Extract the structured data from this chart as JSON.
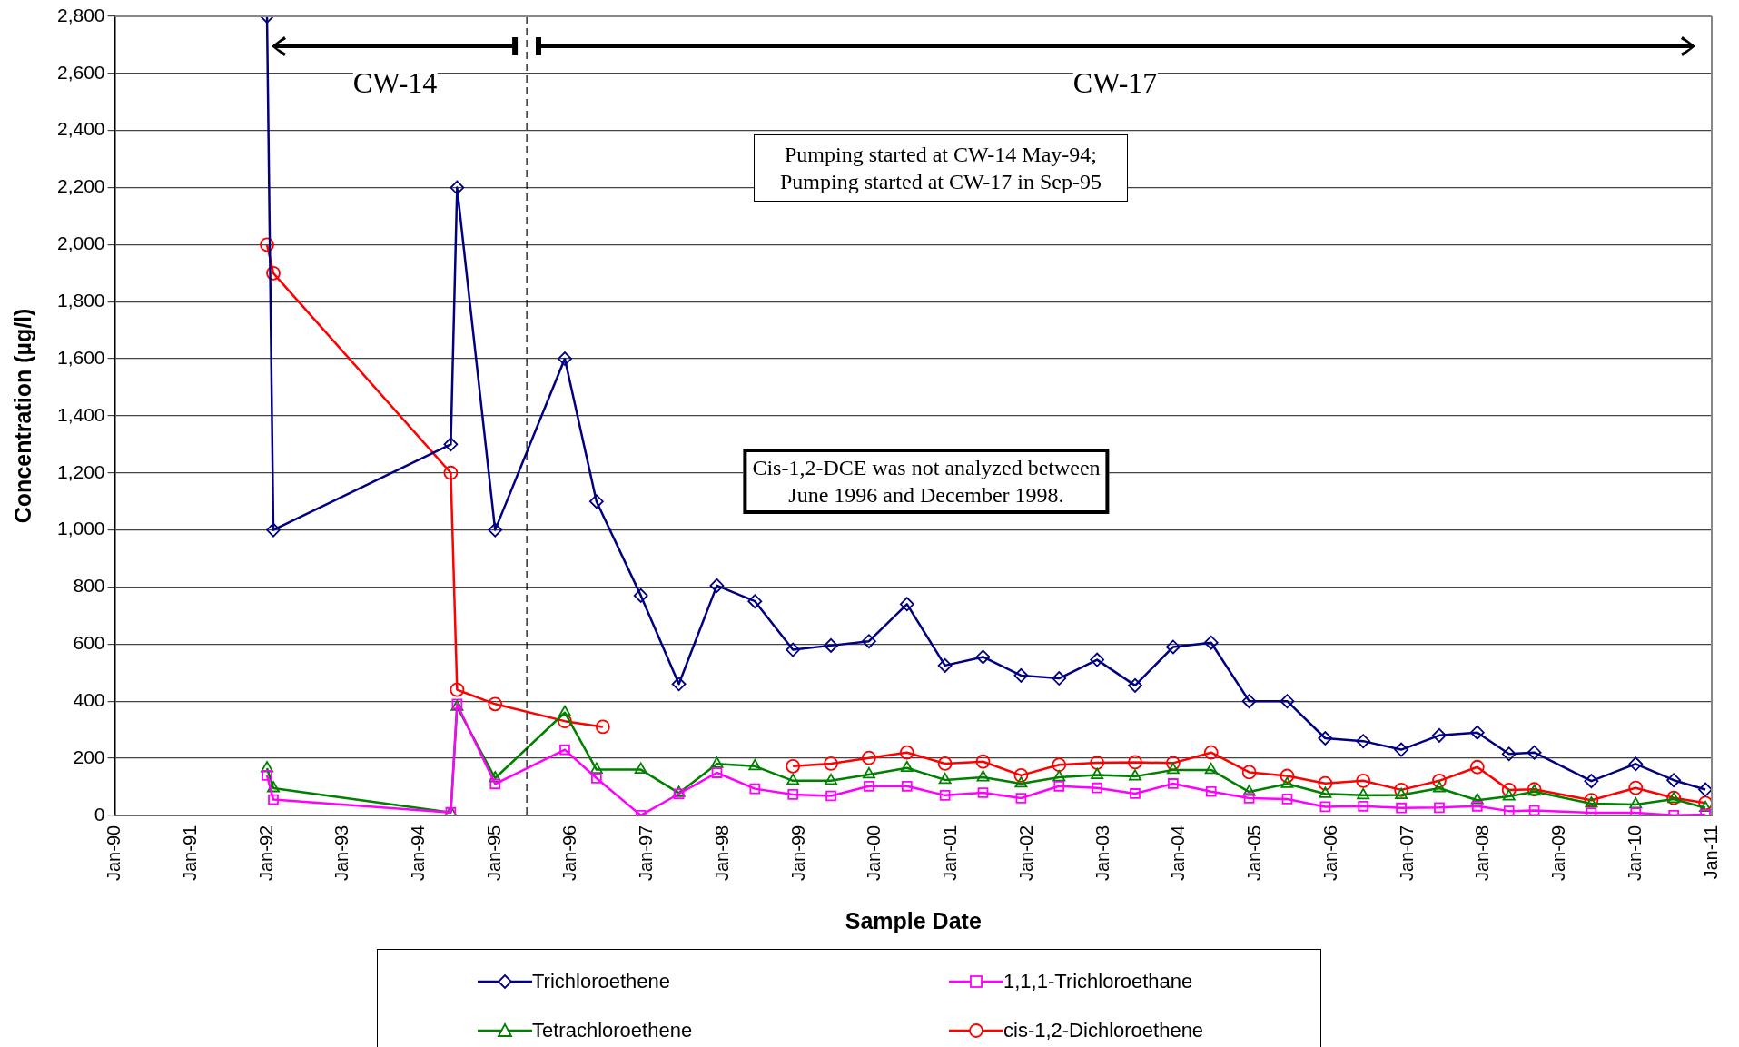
{
  "chart_data": {
    "type": "line",
    "xlabel": "Sample Date",
    "ylabel": "Concentration (µg/l)",
    "xlim": [
      "1990-01",
      "2011-01"
    ],
    "xticks": [
      {
        "value": "1990-01",
        "label": "Jan-90"
      },
      {
        "value": "1991-01",
        "label": "Jan-91"
      },
      {
        "value": "1992-01",
        "label": "Jan-92"
      },
      {
        "value": "1993-01",
        "label": "Jan-93"
      },
      {
        "value": "1994-01",
        "label": "Jan-94"
      },
      {
        "value": "1995-01",
        "label": "Jan-95"
      },
      {
        "value": "1996-01",
        "label": "Jan-96"
      },
      {
        "value": "1997-01",
        "label": "Jan-97"
      },
      {
        "value": "1998-01",
        "label": "Jan-98"
      },
      {
        "value": "1999-01",
        "label": "Jan-99"
      },
      {
        "value": "2000-01",
        "label": "Jan-00"
      },
      {
        "value": "2001-01",
        "label": "Jan-01"
      },
      {
        "value": "2002-01",
        "label": "Jan-02"
      },
      {
        "value": "2003-01",
        "label": "Jan-03"
      },
      {
        "value": "2004-01",
        "label": "Jan-04"
      },
      {
        "value": "2005-01",
        "label": "Jan-05"
      },
      {
        "value": "2006-01",
        "label": "Jan-06"
      },
      {
        "value": "2007-01",
        "label": "Jan-07"
      },
      {
        "value": "2008-01",
        "label": "Jan-08"
      },
      {
        "value": "2009-01",
        "label": "Jan-09"
      },
      {
        "value": "2010-01",
        "label": "Jan-10"
      },
      {
        "value": "2011-01",
        "label": "Jan-11"
      }
    ],
    "ylim": [
      0,
      2800
    ],
    "yticks": [
      0,
      200,
      400,
      600,
      800,
      {
        "value": 1000,
        "label": "1,000"
      },
      {
        "value": 1200,
        "label": "1,200"
      },
      {
        "value": 1400,
        "label": "1,400"
      },
      {
        "value": 1600,
        "label": "1,600"
      },
      {
        "value": 1800,
        "label": "1,800"
      },
      {
        "value": 2000,
        "label": "2,000"
      },
      {
        "value": 2200,
        "label": "2,200"
      },
      {
        "value": 2400,
        "label": "2,400"
      },
      {
        "value": 2600,
        "label": "2,600"
      },
      {
        "value": 2800,
        "label": "2,800"
      }
    ],
    "grid": "y",
    "legend": "bottom",
    "line_style": "solid",
    "series": [
      {
        "name": "Trichloroethene",
        "color": "#000080",
        "marker": "diamond",
        "x": [
          "1992-01",
          "1992-02",
          "1994-06",
          "1994-07",
          "1995-01",
          "1995-12",
          "1996-05",
          "1996-12",
          "1997-06",
          "1997-12",
          "1998-06",
          "1998-12",
          "1999-06",
          "1999-12",
          "2000-06",
          "2000-12",
          "2001-06",
          "2001-12",
          "2002-06",
          "2002-12",
          "2003-06",
          "2003-12",
          "2004-06",
          "2004-12",
          "2005-06",
          "2005-12",
          "2006-06",
          "2006-12",
          "2007-06",
          "2007-12",
          "2008-05",
          "2008-09",
          "2009-06",
          "2010-01",
          "2010-07",
          "2010-12"
        ],
        "values": [
          2800,
          1000,
          1300,
          2200,
          1000,
          1600,
          1100,
          770,
          460,
          805,
          750,
          580,
          595,
          610,
          740,
          525,
          555,
          490,
          480,
          545,
          455,
          590,
          605,
          400,
          400,
          270,
          260,
          230,
          280,
          290,
          215,
          220,
          120,
          180,
          123,
          90
        ]
      },
      {
        "name": "1,1,1-Trichloroethane",
        "color": "#ff00ff",
        "marker": "square",
        "x": [
          "1992-01",
          "1992-02",
          "1994-06",
          "1994-07",
          "1995-01",
          "1995-12",
          "1996-05",
          "1996-12",
          "1997-06",
          "1997-12",
          "1998-06",
          "1998-12",
          "1999-06",
          "1999-12",
          "2000-06",
          "2000-12",
          "2001-06",
          "2001-12",
          "2002-06",
          "2002-12",
          "2003-06",
          "2003-12",
          "2004-06",
          "2004-12",
          "2005-06",
          "2005-12",
          "2006-06",
          "2006-12",
          "2007-06",
          "2007-12",
          "2008-05",
          "2008-09",
          "2009-06",
          "2010-01",
          "2010-07",
          "2010-12"
        ],
        "values": [
          140,
          55,
          10,
          390,
          110,
          230,
          130,
          0,
          75,
          149,
          93,
          73,
          68,
          102,
          102,
          70,
          79,
          60,
          102,
          96,
          76,
          111,
          83,
          60,
          57,
          30,
          32,
          26,
          27,
          32,
          15,
          17,
          9,
          9,
          0,
          3
        ]
      },
      {
        "name": "Tetrachloroethene",
        "color": "#008000",
        "marker": "triangle",
        "x": [
          "1992-01",
          "1992-02",
          "1994-06",
          "1994-07",
          "1995-01",
          "1995-12",
          "1996-05",
          "1996-12",
          "1997-06",
          "1997-12",
          "1998-06",
          "1998-12",
          "1999-06",
          "1999-12",
          "2000-06",
          "2000-12",
          "2001-06",
          "2001-12",
          "2002-06",
          "2002-12",
          "2003-06",
          "2003-12",
          "2004-06",
          "2004-12",
          "2005-06",
          "2005-12",
          "2006-06",
          "2006-12",
          "2007-06",
          "2007-12",
          "2008-05",
          "2008-09",
          "2009-06",
          "2010-01",
          "2010-07",
          "2010-12"
        ],
        "values": [
          165,
          95,
          10,
          380,
          130,
          360,
          160,
          160,
          78,
          180,
          172,
          121,
          121,
          143,
          166,
          124,
          133,
          111,
          133,
          141,
          136,
          159,
          159,
          82,
          110,
          75,
          70,
          71,
          95,
          53,
          66,
          83,
          41,
          38,
          57,
          26
        ]
      },
      {
        "name": "cis-1,2-Dichloroethene",
        "color": "#ff0000",
        "marker": "circle",
        "x": [
          "1992-01",
          "1992-02",
          "1994-06",
          "1994-07",
          "1995-01",
          "1995-12",
          "1996-06",
          "1997-06",
          "1998-12",
          "1999-06",
          "1999-12",
          "2000-06",
          "2000-12",
          "2001-06",
          "2001-12",
          "2002-06",
          "2002-12",
          "2003-06",
          "2003-12",
          "2004-06",
          "2004-12",
          "2005-06",
          "2005-12",
          "2006-06",
          "2006-12",
          "2007-06",
          "2007-12",
          "2008-05",
          "2008-09",
          "2009-06",
          "2010-01",
          "2010-07",
          "2010-12"
        ],
        "values": [
          2000,
          1900,
          1200,
          440,
          390,
          330,
          310,
          null,
          172,
          181,
          201,
          220,
          181,
          188,
          140,
          177,
          184,
          186,
          183,
          220,
          151,
          138,
          112,
          121,
          89,
          121,
          169,
          89,
          91,
          53,
          96,
          61,
          43
        ]
      }
    ],
    "ref_lines": [
      {
        "axis": "x",
        "value": "1995-06",
        "color": "#000000",
        "line_style": "dashed"
      }
    ],
    "annotations": [
      "CW-14",
      "CW-17",
      "Pumping started at CW-14 May-94;\nPumping started at CW-17 in Sep-95",
      "Cis-1,2-DCE was not analyzed between\nJune 1996 and December 1998."
    ]
  }
}
